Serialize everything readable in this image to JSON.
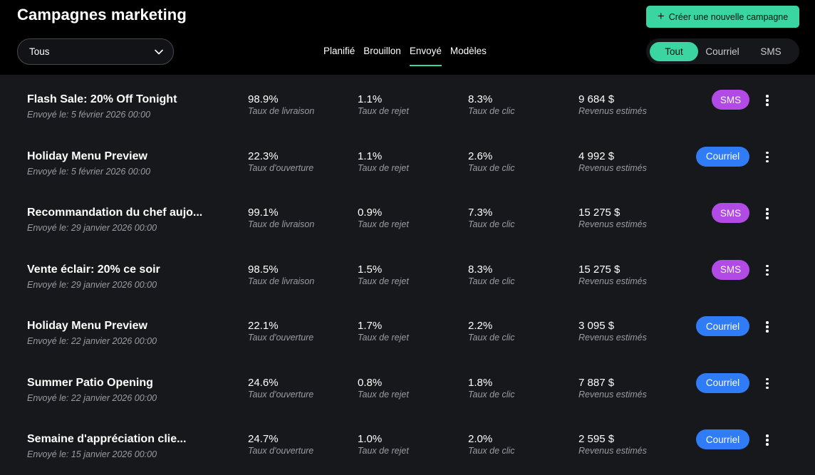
{
  "header": {
    "title": "Campagnes marketing",
    "create_button": {
      "icon": "plus-icon",
      "label": "Créer une nouvelle campagne"
    }
  },
  "filters": {
    "status_select": {
      "value": "Tous",
      "icon": "chevron-down-icon"
    },
    "tabs": [
      {
        "label": "Planifié",
        "active": false
      },
      {
        "label": "Brouillon",
        "active": false
      },
      {
        "label": "Envoyé",
        "active": true
      },
      {
        "label": "Modèles",
        "active": false
      }
    ],
    "channel_toggle": [
      {
        "label": "Tout",
        "active": true
      },
      {
        "label": "Courriel",
        "active": false
      },
      {
        "label": "SMS",
        "active": false
      }
    ]
  },
  "colors": {
    "accent": "#3ad5a0",
    "sms_badge": "#b24ae6",
    "email_badge": "#2f7cf6",
    "list_background": "#16181c"
  },
  "campaigns": [
    {
      "name": "Flash Sale: 20% Off Tonight",
      "sent": "Envoyé le: 5 février 2026 00:00",
      "metrics": [
        {
          "value": "98.9%",
          "label": "Taux de livraison"
        },
        {
          "value": "1.1%",
          "label": "Taux de rejet"
        },
        {
          "value": "8.3%",
          "label": "Taux de clic"
        },
        {
          "value": "9 684 $",
          "label": "Revenus estimés"
        }
      ],
      "channel": "SMS",
      "channel_type": "sms"
    },
    {
      "name": "Holiday Menu Preview",
      "sent": "Envoyé le: 5 février 2026 00:00",
      "metrics": [
        {
          "value": "22.3%",
          "label": "Taux d'ouverture"
        },
        {
          "value": "1.1%",
          "label": "Taux de rejet"
        },
        {
          "value": "2.6%",
          "label": "Taux de clic"
        },
        {
          "value": "4 992 $",
          "label": "Revenus estimés"
        }
      ],
      "channel": "Courriel",
      "channel_type": "email"
    },
    {
      "name": "Recommandation du chef aujo...",
      "sent": "Envoyé le: 29 janvier 2026 00:00",
      "metrics": [
        {
          "value": "99.1%",
          "label": "Taux de livraison"
        },
        {
          "value": "0.9%",
          "label": "Taux de rejet"
        },
        {
          "value": "7.3%",
          "label": "Taux de clic"
        },
        {
          "value": "15 275 $",
          "label": "Revenus estimés"
        }
      ],
      "channel": "SMS",
      "channel_type": "sms"
    },
    {
      "name": "Vente éclair: 20% ce soir",
      "sent": "Envoyé le: 29 janvier 2026 00:00",
      "metrics": [
        {
          "value": "98.5%",
          "label": "Taux de livraison"
        },
        {
          "value": "1.5%",
          "label": "Taux de rejet"
        },
        {
          "value": "8.3%",
          "label": "Taux de clic"
        },
        {
          "value": "15 275 $",
          "label": "Revenus estimés"
        }
      ],
      "channel": "SMS",
      "channel_type": "sms"
    },
    {
      "name": "Holiday Menu Preview",
      "sent": "Envoyé le: 22 janvier 2026 00:00",
      "metrics": [
        {
          "value": "22.1%",
          "label": "Taux d'ouverture"
        },
        {
          "value": "1.7%",
          "label": "Taux de rejet"
        },
        {
          "value": "2.2%",
          "label": "Taux de clic"
        },
        {
          "value": "3 095 $",
          "label": "Revenus estimés"
        }
      ],
      "channel": "Courriel",
      "channel_type": "email"
    },
    {
      "name": "Summer Patio Opening",
      "sent": "Envoyé le: 22 janvier 2026 00:00",
      "metrics": [
        {
          "value": "24.6%",
          "label": "Taux d'ouverture"
        },
        {
          "value": "0.8%",
          "label": "Taux de rejet"
        },
        {
          "value": "1.8%",
          "label": "Taux de clic"
        },
        {
          "value": "7 887 $",
          "label": "Revenus estimés"
        }
      ],
      "channel": "Courriel",
      "channel_type": "email"
    },
    {
      "name": "Semaine d'appréciation clie...",
      "sent": "Envoyé le: 15 janvier 2026 00:00",
      "metrics": [
        {
          "value": "24.7%",
          "label": "Taux d'ouverture"
        },
        {
          "value": "1.0%",
          "label": "Taux de rejet"
        },
        {
          "value": "2.0%",
          "label": "Taux de clic"
        },
        {
          "value": "2 595 $",
          "label": "Revenus estimés"
        }
      ],
      "channel": "Courriel",
      "channel_type": "email"
    }
  ],
  "row_menu_icon": "more-vertical-icon"
}
